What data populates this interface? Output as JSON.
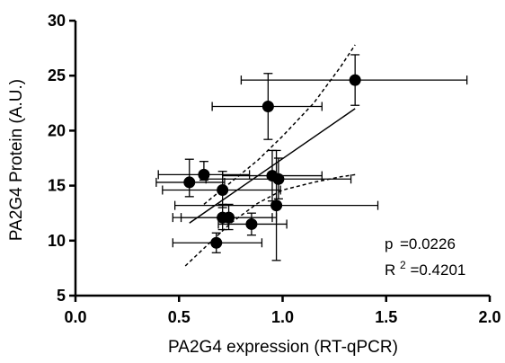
{
  "chart_data": {
    "type": "scatter",
    "xlabel": "PA2G4 expression (RT-qPCR)",
    "ylabel": "PA2G4 Protein (A.U.)",
    "xlim": [
      0.0,
      2.0
    ],
    "ylim": [
      5,
      30
    ],
    "x_ticks": [
      "0.0",
      "0.5",
      "1.0",
      "1.5",
      "2.0"
    ],
    "y_ticks": [
      "5",
      "10",
      "15",
      "20",
      "25",
      "30"
    ],
    "grid": false,
    "points": [
      {
        "x": 0.55,
        "y": 15.3,
        "xerr": [
          0.39,
          0.72
        ],
        "yerr": [
          14.0,
          17.4
        ]
      },
      {
        "x": 0.62,
        "y": 16.0,
        "xerr": [
          0.4,
          0.84
        ],
        "yerr": [
          15.5,
          17.2
        ]
      },
      {
        "x": 0.68,
        "y": 9.8,
        "xerr": [
          0.47,
          0.9
        ],
        "yerr": [
          8.9,
          10.7
        ]
      },
      {
        "x": 0.71,
        "y": 14.6,
        "xerr": [
          0.42,
          0.99
        ],
        "yerr": [
          13.0,
          16.3
        ]
      },
      {
        "x": 0.71,
        "y": 12.1,
        "xerr": [
          0.47,
          0.95
        ],
        "yerr": [
          11.0,
          13.3
        ]
      },
      {
        "x": 0.74,
        "y": 12.1,
        "xerr": [
          0.51,
          0.97
        ],
        "yerr": [
          11.0,
          13.3
        ]
      },
      {
        "x": 0.85,
        "y": 11.5,
        "xerr": [
          0.69,
          1.02
        ],
        "yerr": [
          10.5,
          12.5
        ]
      },
      {
        "x": 0.93,
        "y": 22.2,
        "xerr": [
          0.66,
          1.19
        ],
        "yerr": [
          19.2,
          25.2
        ]
      },
      {
        "x": 0.95,
        "y": 15.9,
        "xerr": [
          0.71,
          1.19
        ],
        "yerr": [
          13.6,
          18.2
        ]
      },
      {
        "x": 0.97,
        "y": 13.2,
        "xerr": [
          0.48,
          1.46
        ],
        "yerr": [
          8.2,
          18.2
        ]
      },
      {
        "x": 0.98,
        "y": 15.6,
        "xerr": [
          0.63,
          1.33
        ],
        "yerr": [
          13.8,
          17.5
        ]
      },
      {
        "x": 1.35,
        "y": 24.6,
        "xerr": [
          0.8,
          1.89
        ],
        "yerr": [
          22.3,
          26.9
        ]
      }
    ],
    "regression": {
      "x0": 0.55,
      "y0": 11.6,
      "x1": 1.35,
      "y1": 22.0
    },
    "ci_upper": [
      [
        0.62,
        13.3
      ],
      [
        0.75,
        15.3
      ],
      [
        0.88,
        17.3
      ],
      [
        1.0,
        19.5
      ],
      [
        1.15,
        22.5
      ],
      [
        1.28,
        25.8
      ],
      [
        1.35,
        27.8
      ]
    ],
    "ci_lower": [
      [
        0.53,
        7.7
      ],
      [
        0.62,
        9.3
      ],
      [
        0.75,
        11.6
      ],
      [
        0.88,
        13.4
      ],
      [
        1.0,
        14.6
      ],
      [
        1.15,
        15.3
      ],
      [
        1.28,
        15.8
      ],
      [
        1.35,
        16.0
      ]
    ],
    "annotations": {
      "p_label": "p",
      "p_value": "=0.0226",
      "r2_label": "R",
      "r2_sup": "2",
      "r2_value": "=0.4201"
    }
  }
}
